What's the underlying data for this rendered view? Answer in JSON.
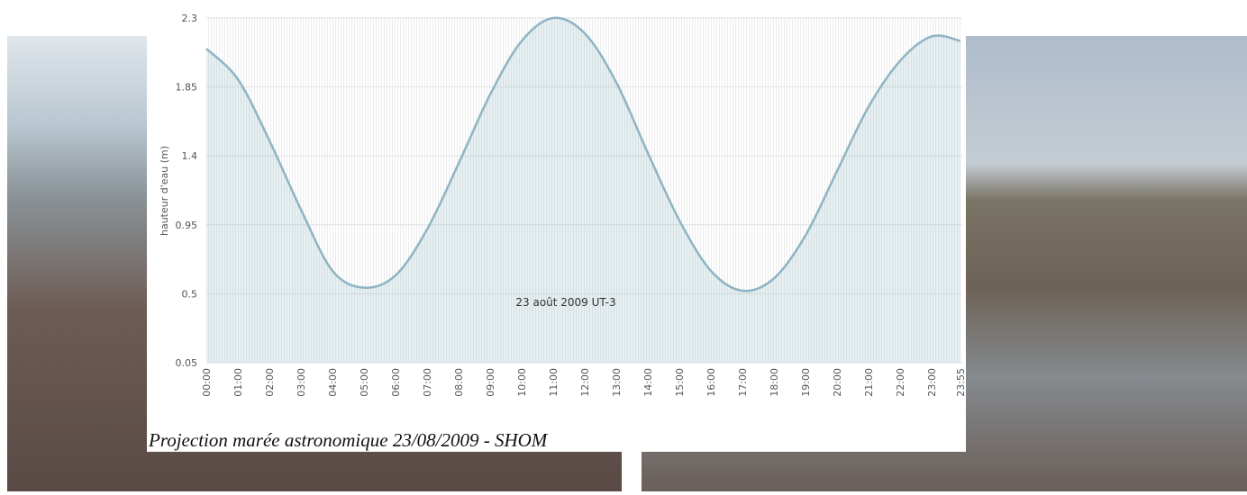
{
  "chart_data": {
    "type": "area",
    "caption": "Projection marée astronomique 23/08/2009 - SHOM",
    "ylabel": "hauteur d'eau (m)",
    "annotation": "23 août 2009 UT-3",
    "x": [
      "00:00",
      "01:00",
      "02:00",
      "03:00",
      "04:00",
      "05:00",
      "06:00",
      "07:00",
      "08:00",
      "09:00",
      "10:00",
      "11:00",
      "12:00",
      "13:00",
      "14:00",
      "15:00",
      "16:00",
      "17:00",
      "18:00",
      "19:00",
      "20:00",
      "21:00",
      "22:00",
      "23:00",
      "23:55"
    ],
    "series": [
      {
        "name": "hauteur d'eau",
        "color": "#8fb4c4",
        "values": [
          2.1,
          1.9,
          1.5,
          1.05,
          0.65,
          0.54,
          0.62,
          0.92,
          1.35,
          1.8,
          2.15,
          2.3,
          2.2,
          1.88,
          1.42,
          0.98,
          0.65,
          0.52,
          0.6,
          0.88,
          1.3,
          1.72,
          2.02,
          2.18,
          2.15
        ]
      }
    ],
    "xlim": [
      "00:00",
      "23:55"
    ],
    "ylim": [
      0.05,
      2.3
    ],
    "yticks": [
      0.05,
      0.5,
      0.95,
      1.4,
      1.85,
      2.3
    ],
    "grid": true
  }
}
